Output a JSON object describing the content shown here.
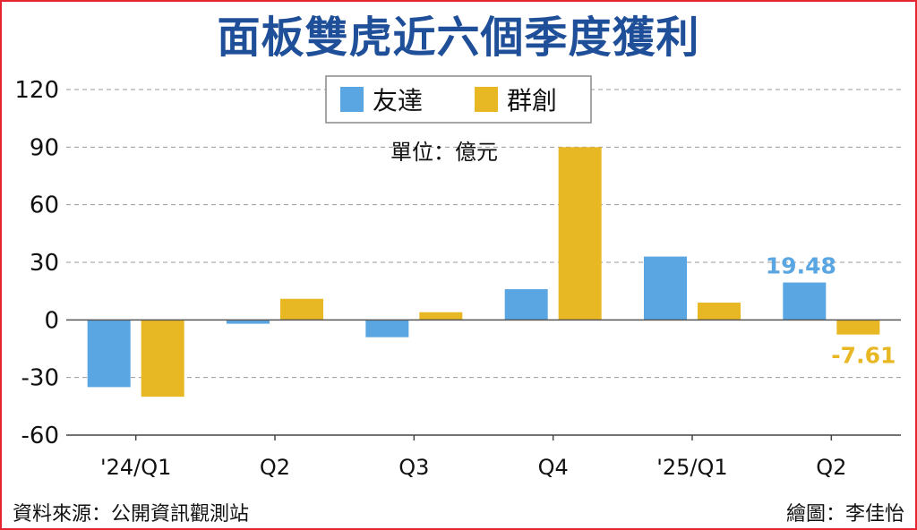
{
  "title": "面板雙虎近六個季度獲利",
  "unit": "單位：億元",
  "source": "資料來源：公開資訊觀測站",
  "credit": "繪圖：李佳怡",
  "colors": {
    "series0": "#5aa6e2",
    "series1": "#e8b824",
    "grid": "#9a9a9a",
    "frame": "#e3262f",
    "title": "#1e4f98"
  },
  "chart_data": {
    "type": "bar",
    "categories": [
      "'24/Q1",
      "Q2",
      "Q3",
      "Q4",
      "'25/Q1",
      "Q2"
    ],
    "series": [
      {
        "name": "友達",
        "values": [
          -35,
          -2,
          -9,
          16,
          33,
          19.48
        ]
      },
      {
        "name": "群創",
        "values": [
          -40,
          11,
          4,
          90,
          9,
          -7.61
        ]
      }
    ],
    "ylim": [
      -60,
      120
    ],
    "yticks": [
      120,
      90,
      60,
      30,
      0,
      -30,
      -60
    ],
    "grid": true,
    "legend": "top-center",
    "data_labels": [
      {
        "series": 0,
        "index": 5,
        "text": "19.48"
      },
      {
        "series": 1,
        "index": 5,
        "text": "-7.61"
      }
    ]
  }
}
